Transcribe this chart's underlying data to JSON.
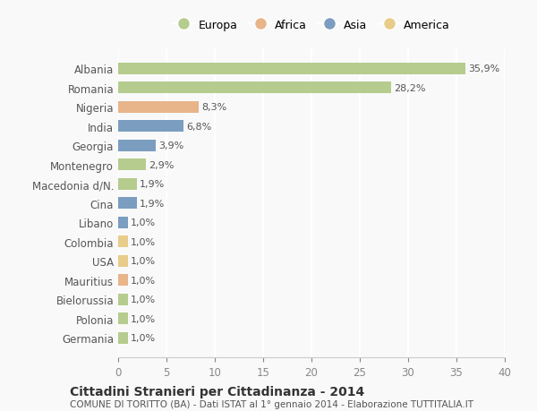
{
  "countries": [
    "Albania",
    "Romania",
    "Nigeria",
    "India",
    "Georgia",
    "Montenegro",
    "Macedonia d/N.",
    "Cina",
    "Libano",
    "Colombia",
    "USA",
    "Mauritius",
    "Bielorussia",
    "Polonia",
    "Germania"
  ],
  "values": [
    35.9,
    28.2,
    8.3,
    6.8,
    3.9,
    2.9,
    1.9,
    1.9,
    1.0,
    1.0,
    1.0,
    1.0,
    1.0,
    1.0,
    1.0
  ],
  "labels": [
    "35,9%",
    "28,2%",
    "8,3%",
    "6,8%",
    "3,9%",
    "2,9%",
    "1,9%",
    "1,9%",
    "1,0%",
    "1,0%",
    "1,0%",
    "1,0%",
    "1,0%",
    "1,0%",
    "1,0%"
  ],
  "continents": [
    "Europa",
    "Europa",
    "Africa",
    "Asia",
    "Asia",
    "Europa",
    "Europa",
    "Asia",
    "Asia",
    "America",
    "America",
    "Africa",
    "Europa",
    "Europa",
    "Europa"
  ],
  "colors": {
    "Europa": "#b5cc8e",
    "Africa": "#e8b48a",
    "Asia": "#7b9dc0",
    "America": "#e8cc8a"
  },
  "legend_order": [
    "Europa",
    "Africa",
    "Asia",
    "America"
  ],
  "xlim": [
    0,
    40
  ],
  "xticks": [
    0,
    5,
    10,
    15,
    20,
    25,
    30,
    35,
    40
  ],
  "title": "Cittadini Stranieri per Cittadinanza - 2014",
  "subtitle": "COMUNE DI TORITTO (BA) - Dati ISTAT al 1° gennaio 2014 - Elaborazione TUTTITALIA.IT",
  "background_color": "#f9f9f9",
  "grid_color": "#ffffff",
  "bar_height": 0.6
}
